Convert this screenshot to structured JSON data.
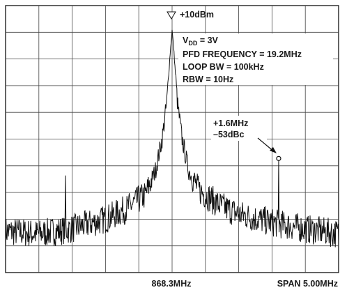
{
  "chart_data": {
    "type": "line",
    "title": "",
    "xlabel": "",
    "ylabel": "",
    "x_unit": "MHz",
    "y_unit": "dB",
    "grid": true,
    "x_divisions": 10,
    "y_divisions": 10,
    "xlim": [
      865.8,
      870.8
    ],
    "ylim": [
      -100,
      10
    ],
    "reference_level": {
      "label": "+10dBm",
      "value": 10
    },
    "center_frequency": {
      "label": "868.3MHz",
      "value": 868.3
    },
    "span": {
      "label": "SPAN 5.00MHz",
      "value": 5.0
    },
    "annotation_lines": [
      "V",
      "PFD FREQUENCY = 19.2MHz",
      "LOOP BW = 100kHz",
      "RBW = 10Hz"
    ],
    "vdd": {
      "main": "V",
      "sub": "DD",
      "rest": " = 3V"
    },
    "marker": {
      "label_line1": "+1.6MHz",
      "label_line2": "–53dBc",
      "x": 869.9,
      "y": -53
    },
    "series": [
      {
        "profile_points": [
          [
            865.8,
            -83
          ],
          [
            866.3,
            -84
          ],
          [
            866.8,
            -82
          ],
          [
            867.3,
            -78
          ],
          [
            867.6,
            -74
          ],
          [
            867.9,
            -68
          ],
          [
            868.05,
            -58
          ],
          [
            868.15,
            -45
          ],
          [
            868.22,
            -30
          ],
          [
            868.27,
            -10
          ],
          [
            868.3,
            0
          ],
          [
            868.33,
            -10
          ],
          [
            868.38,
            -30
          ],
          [
            868.45,
            -45
          ],
          [
            868.55,
            -58
          ],
          [
            868.7,
            -66
          ],
          [
            869.0,
            -72
          ],
          [
            869.3,
            -76
          ],
          [
            869.6,
            -78
          ],
          [
            869.9,
            -80
          ],
          [
            870.3,
            -82
          ],
          [
            870.8,
            -84
          ]
        ],
        "spurs": [
          {
            "x": 866.7,
            "y": -60
          },
          {
            "x": 869.9,
            "y": -53
          }
        ]
      }
    ]
  }
}
